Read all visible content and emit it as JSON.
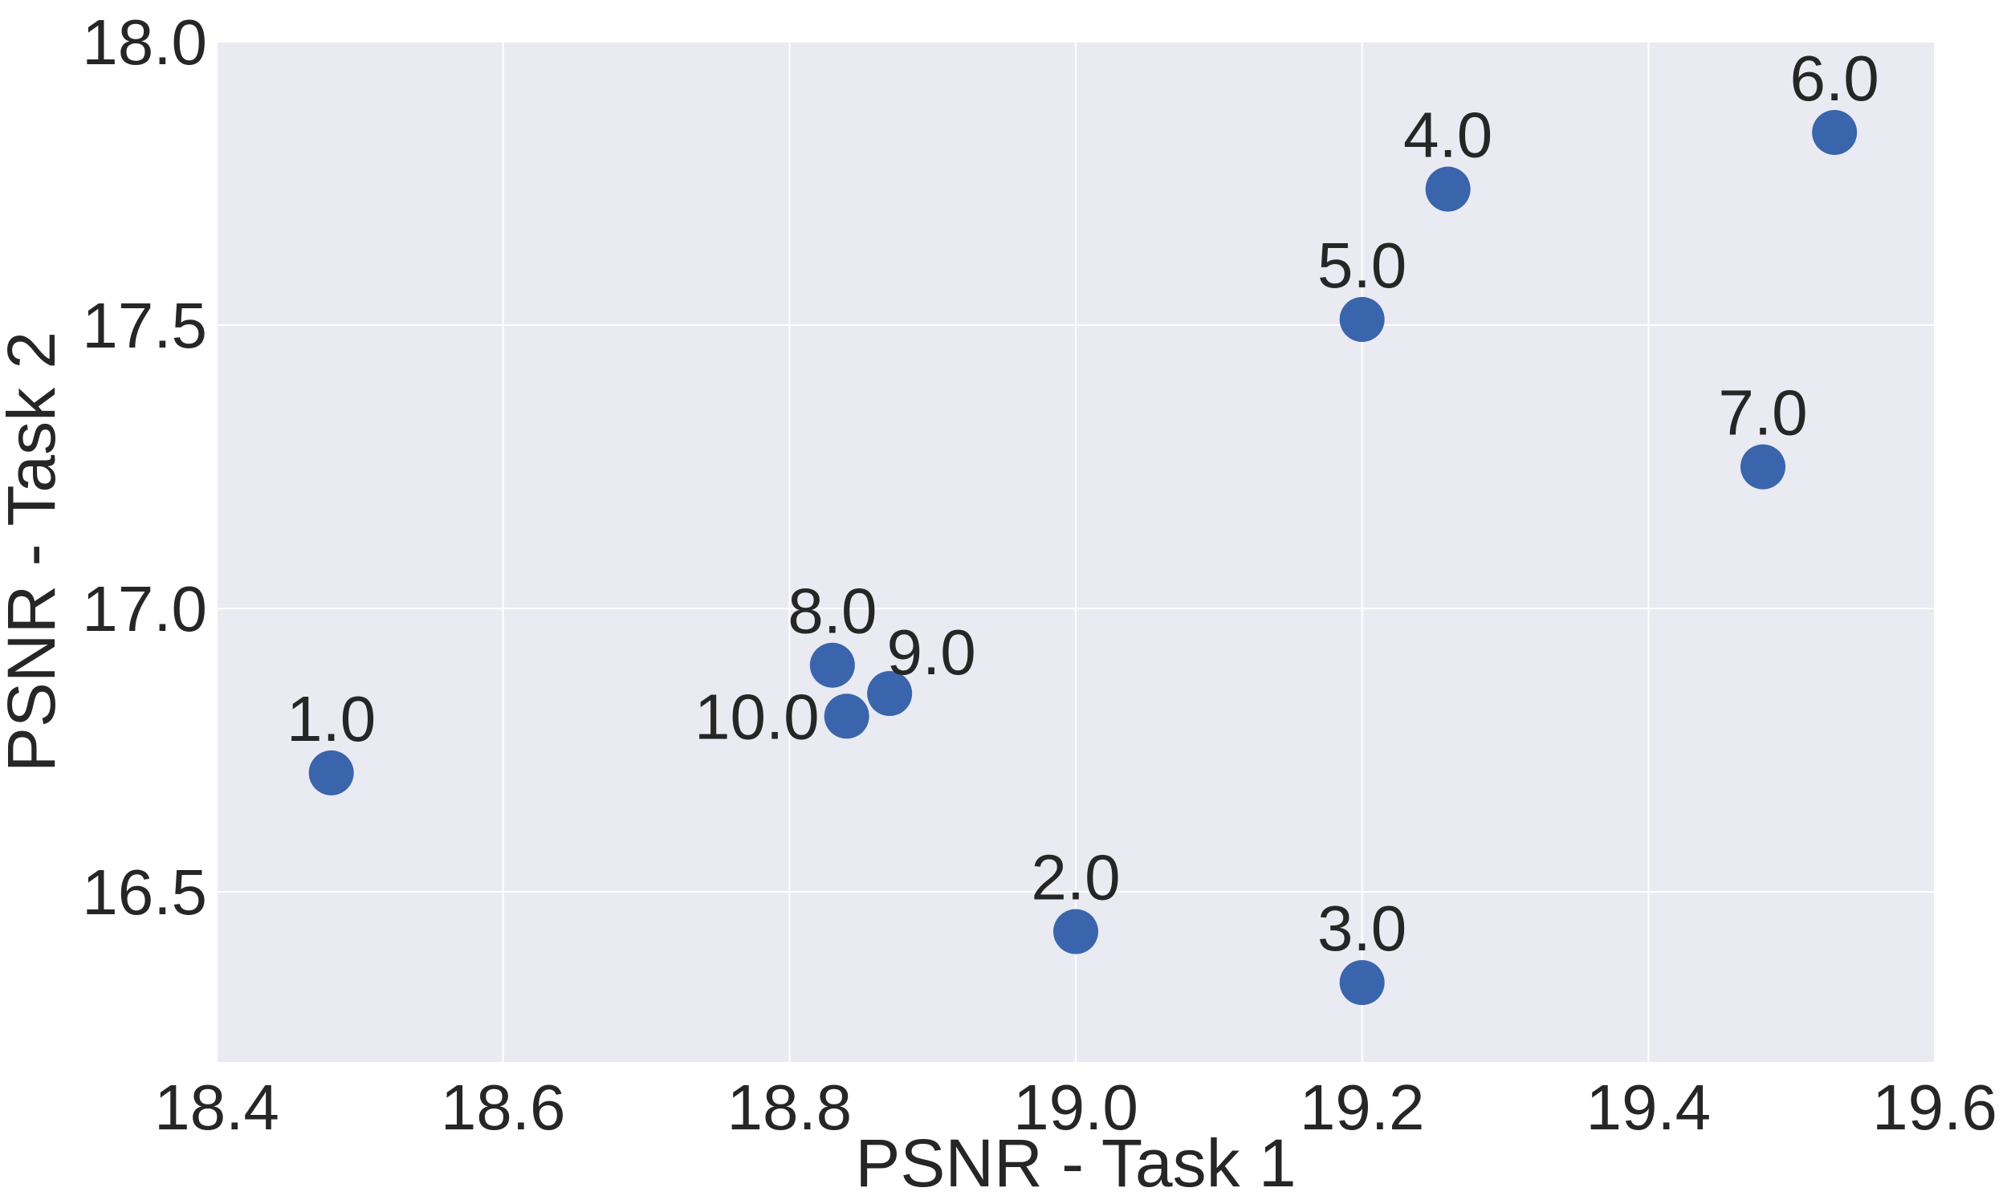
{
  "chart_data": {
    "type": "scatter",
    "title": "",
    "xlabel": "PSNR - Task 1",
    "ylabel": "PSNR - Task 2",
    "xlim": [
      18.4,
      19.6
    ],
    "ylim": [
      16.2,
      18.0
    ],
    "xticks": [
      "18.4",
      "18.6",
      "18.8",
      "19.0",
      "19.2",
      "19.4",
      "19.6"
    ],
    "xtick_values": [
      18.4,
      18.6,
      18.8,
      19.0,
      19.2,
      19.4,
      19.6
    ],
    "yticks": [
      "16.5",
      "17.0",
      "17.5",
      "18.0"
    ],
    "ytick_values": [
      16.5,
      17.0,
      17.5,
      18.0
    ],
    "grid": true,
    "colors": {
      "background": "#EAEAF2",
      "grid": "#FFFFFF",
      "marker": "#3A65AD",
      "text": "#262626"
    },
    "points": [
      {
        "label": "1.0",
        "x": 18.48,
        "y": 16.71,
        "label_position": "above"
      },
      {
        "label": "2.0",
        "x": 19.0,
        "y": 16.43,
        "label_position": "above"
      },
      {
        "label": "3.0",
        "x": 19.2,
        "y": 16.34,
        "label_position": "above"
      },
      {
        "label": "4.0",
        "x": 19.26,
        "y": 17.74,
        "label_position": "above"
      },
      {
        "label": "5.0",
        "x": 19.2,
        "y": 17.51,
        "label_position": "above"
      },
      {
        "label": "6.0",
        "x": 19.53,
        "y": 17.84,
        "label_position": "above"
      },
      {
        "label": "7.0",
        "x": 19.48,
        "y": 17.25,
        "label_position": "above"
      },
      {
        "label": "8.0",
        "x": 18.83,
        "y": 16.9,
        "label_position": "above"
      },
      {
        "label": "9.0",
        "x": 18.87,
        "y": 16.85,
        "label_position": "above-right"
      },
      {
        "label": "10.0",
        "x": 18.84,
        "y": 16.81,
        "label_position": "left"
      }
    ]
  }
}
